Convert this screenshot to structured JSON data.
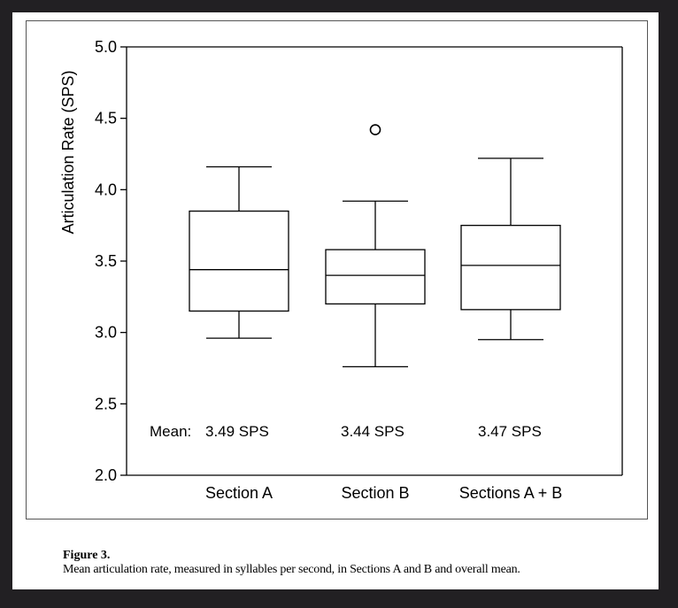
{
  "chart_data": {
    "type": "boxplot",
    "ylabel": "Articulation Rate (SPS)",
    "xlabel": "",
    "ylim": [
      2.0,
      5.0
    ],
    "yticks": [
      2.0,
      2.5,
      3.0,
      3.5,
      4.0,
      4.5,
      5.0
    ],
    "ytick_labels": [
      "2.0",
      "2.5",
      "3.0",
      "3.5",
      "4.0",
      "4.5",
      "5.0"
    ],
    "categories": [
      "Section A",
      "Section B",
      "Sections A + B"
    ],
    "boxes": [
      {
        "name": "Section A",
        "whisker_low": 2.96,
        "q1": 3.15,
        "median": 3.44,
        "q3": 3.85,
        "whisker_high": 4.16,
        "outliers": []
      },
      {
        "name": "Section B",
        "whisker_low": 2.76,
        "q1": 3.2,
        "median": 3.4,
        "q3": 3.58,
        "whisker_high": 3.92,
        "outliers": [
          4.42
        ]
      },
      {
        "name": "Sections A + B",
        "whisker_low": 2.95,
        "q1": 3.16,
        "median": 3.47,
        "q3": 3.75,
        "whisker_high": 4.22,
        "outliers": []
      }
    ],
    "mean_prefix": "Mean:",
    "mean_labels": [
      "3.49 SPS",
      "3.44 SPS",
      "3.47 SPS"
    ],
    "grid": false
  },
  "caption": {
    "label": "Figure 3.",
    "text": "Mean articulation rate, measured in syllables per second, in Sections A and B and overall mean."
  },
  "colors": {
    "background": "#222023",
    "sheet": "#ffffff",
    "ink": "#000000"
  }
}
